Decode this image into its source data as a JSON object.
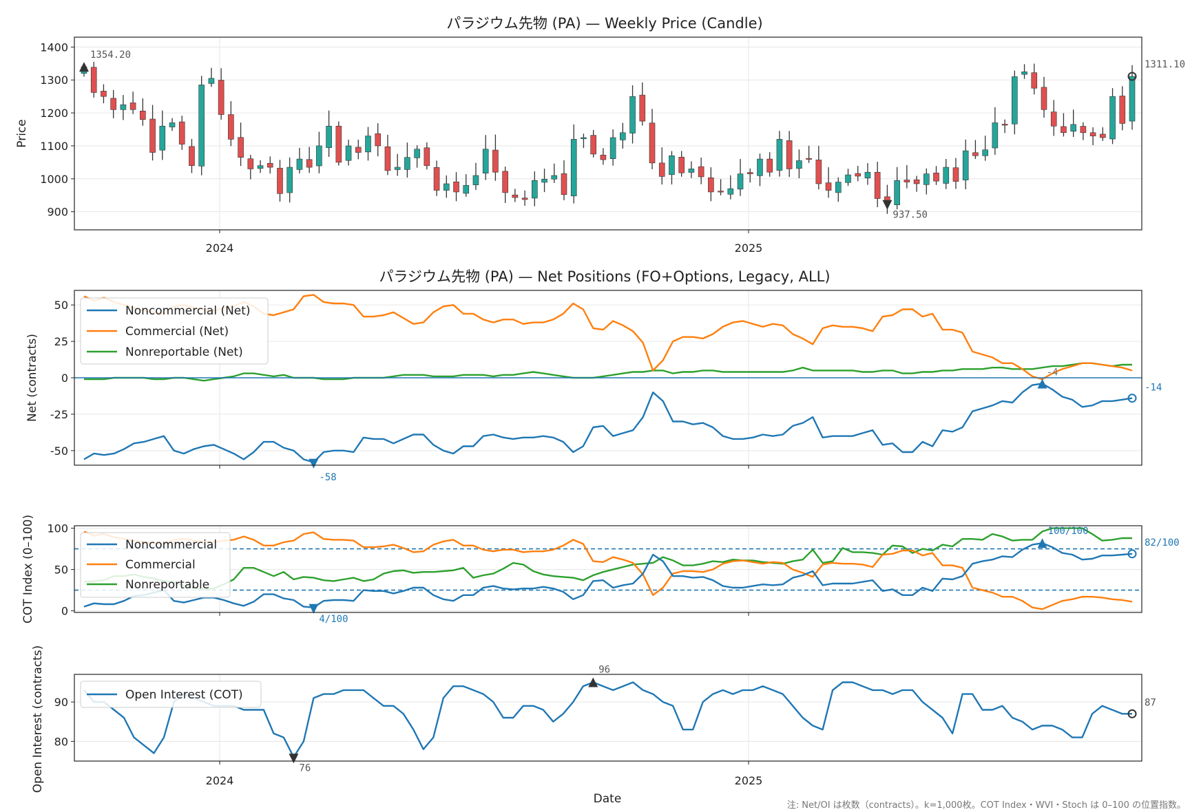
{
  "colors": {
    "up": "#26a69a",
    "down": "#e05050",
    "noncommercial": "#1f77b4",
    "commercial": "#ff7f0e",
    "nonreportable": "#2ca02c",
    "dark": "#333333",
    "grid": "#e6e6e6"
  },
  "footnote": "注: Net/OI は枚数（contracts）。k=1,000枚。COT Index・WVI・Stoch は 0–100 の位置指数。",
  "x_axis": {
    "label": "Date",
    "tick_labels": [
      "2024",
      "2025"
    ]
  },
  "chart_data": [
    {
      "type": "candlestick",
      "title": "パラジウム先物 (PA) — Weekly Price (Candle)",
      "ylabel": "Price",
      "ylim": [
        845,
        1430
      ],
      "yticks": [
        900,
        1000,
        1100,
        1200,
        1300,
        1400
      ],
      "grid": true,
      "annotations": {
        "max_label": "1354.20",
        "min_label": "937.50",
        "last_label": "1311.10"
      },
      "closes": [
        1340,
        1262,
        1250,
        1210,
        1225,
        1210,
        1180,
        1080,
        1160,
        1170,
        1105,
        1040,
        1285,
        1305,
        1195,
        1120,
        1065,
        1030,
        1040,
        1035,
        955,
        1035,
        1060,
        1035,
        1100,
        1160,
        1050,
        1100,
        1080,
        1130,
        1100,
        1025,
        1035,
        1065,
        1090,
        1040,
        965,
        985,
        960,
        980,
        1010,
        1090,
        1020,
        958,
        943,
        937,
        995,
        999,
        1010,
        952,
        1120,
        1125,
        1075,
        1058,
        1125,
        1140,
        1250,
        1175,
        1048,
        1007,
        1070,
        1018,
        1030,
        1006,
        960,
        960,
        970,
        1015,
        1015,
        1060,
        1020,
        1120,
        1030,
        1055,
        1060,
        985,
        965,
        990,
        1012,
        1008,
        1020,
        940,
        925,
        995,
        990,
        985,
        1015,
        993,
        1035,
        992,
        1085,
        1070,
        1088,
        1170,
        1165,
        1310,
        1325,
        1275,
        1210,
        1160,
        1140,
        1165,
        1140,
        1130,
        1125,
        1250,
        1168,
        1311
      ],
      "mark_types": [
        "up",
        "down"
      ]
    },
    {
      "type": "line",
      "title": "パラジウム先物 (PA) — Net Positions (FO+Options, Legacy, ALL)",
      "ylabel": "Net (contracts)",
      "ylim": [
        -60,
        60
      ],
      "yticks": [
        -50,
        -25,
        0,
        25,
        50
      ],
      "legend": "top-left",
      "grid": true,
      "annotations": {
        "min_label": "-58",
        "max_label": "-4",
        "last_label": "-14"
      },
      "series": [
        {
          "name": "Noncommercial (Net)",
          "color": "#1f77b4",
          "values": [
            -56,
            -52,
            -53,
            -52,
            -49,
            -45,
            -44,
            -42,
            -40,
            -50,
            -52,
            -49,
            -47,
            -46,
            -49,
            -52,
            -56,
            -51,
            -44,
            -44,
            -48,
            -50,
            -56,
            -58,
            -51,
            -50,
            -50,
            -51,
            -41,
            -42,
            -42,
            -45,
            -42,
            -39,
            -39,
            -46,
            -50,
            -52,
            -47,
            -47,
            -40,
            -39,
            -41,
            -42,
            -41,
            -41,
            -40,
            -41,
            -44,
            -51,
            -47,
            -34,
            -33,
            -40,
            -38,
            -36,
            -27,
            -10,
            -16,
            -30,
            -30,
            -32,
            -31,
            -34,
            -40,
            -42,
            -42,
            -41,
            -39,
            -40,
            -39,
            -33,
            -31,
            -27,
            -41,
            -40,
            -40,
            -40,
            -38,
            -36,
            -46,
            -45,
            -51,
            -51,
            -44,
            -47,
            -36,
            -37,
            -34,
            -23,
            -21,
            -19,
            -16,
            -17,
            -10,
            -5,
            -4,
            -8,
            -13,
            -15,
            -20,
            -19,
            -16,
            -16,
            -15,
            -14
          ]
        },
        {
          "name": "Commercial (Net)",
          "color": "#ff7f0e",
          "values": [
            56,
            53,
            55,
            52,
            50,
            48,
            46,
            45,
            44,
            49,
            50,
            48,
            47,
            46,
            48,
            49,
            52,
            49,
            44,
            43,
            45,
            47,
            56,
            57,
            52,
            51,
            51,
            50,
            42,
            42,
            43,
            45,
            41,
            37,
            38,
            45,
            49,
            50,
            44,
            44,
            40,
            38,
            40,
            40,
            37,
            38,
            38,
            40,
            44,
            51,
            47,
            34,
            33,
            39,
            36,
            32,
            24,
            5,
            12,
            25,
            28,
            28,
            27,
            30,
            35,
            38,
            39,
            37,
            35,
            37,
            36,
            30,
            27,
            23,
            34,
            36,
            35,
            35,
            34,
            32,
            42,
            43,
            47,
            47,
            42,
            44,
            33,
            33,
            31,
            18,
            16,
            14,
            10,
            10,
            6,
            1,
            -1,
            3,
            6,
            8,
            10,
            10,
            9,
            8,
            7,
            5
          ]
        },
        {
          "name": "Nonreportable (Net)",
          "color": "#2ca02c",
          "values": [
            -1,
            -1,
            -1,
            0,
            0,
            0,
            0,
            -1,
            -1,
            0,
            0,
            -1,
            -2,
            -1,
            0,
            1,
            3,
            3,
            2,
            1,
            2,
            0,
            0,
            0,
            -1,
            -1,
            -1,
            0,
            0,
            0,
            0,
            1,
            2,
            2,
            2,
            1,
            1,
            1,
            2,
            2,
            2,
            1,
            2,
            2,
            3,
            4,
            3,
            2,
            1,
            0,
            0,
            0,
            1,
            2,
            3,
            4,
            4,
            5,
            5,
            3,
            4,
            4,
            5,
            5,
            4,
            4,
            4,
            4,
            4,
            4,
            4,
            5,
            7,
            5,
            5,
            5,
            5,
            5,
            4,
            4,
            5,
            5,
            3,
            3,
            4,
            4,
            5,
            5,
            6,
            6,
            6,
            7,
            7,
            6,
            6,
            6,
            7,
            8,
            8,
            9,
            10,
            10,
            9,
            8,
            9,
            9
          ]
        }
      ]
    },
    {
      "type": "line",
      "title": "",
      "ylabel": "COT Index (0–100)",
      "ylim": [
        -2,
        103
      ],
      "yticks": [
        0,
        50,
        100
      ],
      "reference_lines": [
        25,
        75
      ],
      "legend": "top-left",
      "grid": true,
      "annotations": {
        "min_label": "4/100",
        "max_label": "100/100",
        "last_label": "82/100"
      },
      "series": [
        {
          "name": "Noncommercial",
          "color": "#1f77b4",
          "values": [
            5,
            9,
            8,
            8,
            12,
            18,
            19,
            22,
            25,
            12,
            10,
            13,
            16,
            16,
            13,
            9,
            6,
            11,
            20,
            20,
            15,
            13,
            5,
            4,
            12,
            13,
            13,
            12,
            25,
            24,
            24,
            21,
            24,
            28,
            28,
            19,
            14,
            12,
            19,
            19,
            28,
            30,
            27,
            26,
            27,
            27,
            29,
            27,
            23,
            14,
            19,
            36,
            37,
            28,
            31,
            33,
            45,
            68,
            60,
            42,
            42,
            40,
            41,
            37,
            30,
            28,
            28,
            30,
            32,
            31,
            32,
            40,
            43,
            48,
            31,
            33,
            33,
            33,
            35,
            37,
            24,
            26,
            19,
            19,
            28,
            24,
            39,
            38,
            42,
            57,
            60,
            62,
            66,
            65,
            74,
            80,
            82,
            77,
            70,
            68,
            62,
            63,
            67,
            67,
            68,
            69
          ]
        },
        {
          "name": "Commercial",
          "color": "#ff7f0e",
          "values": [
            96,
            91,
            93,
            89,
            87,
            85,
            83,
            82,
            81,
            86,
            87,
            85,
            84,
            83,
            85,
            86,
            90,
            86,
            79,
            79,
            83,
            85,
            93,
            95,
            87,
            86,
            86,
            85,
            77,
            77,
            78,
            80,
            76,
            71,
            72,
            80,
            84,
            86,
            79,
            79,
            74,
            72,
            74,
            74,
            71,
            72,
            72,
            74,
            79,
            86,
            81,
            60,
            59,
            65,
            62,
            58,
            44,
            19,
            28,
            45,
            48,
            48,
            47,
            50,
            57,
            60,
            61,
            59,
            57,
            59,
            58,
            50,
            46,
            41,
            56,
            58,
            57,
            57,
            56,
            53,
            68,
            69,
            73,
            73,
            67,
            70,
            55,
            55,
            52,
            28,
            25,
            22,
            17,
            17,
            12,
            4,
            2,
            7,
            12,
            14,
            17,
            17,
            16,
            14,
            13,
            11
          ]
        },
        {
          "name": "Nonreportable",
          "color": "#2ca02c",
          "values": [
            35,
            36,
            37,
            42,
            42,
            44,
            41,
            39,
            36,
            35,
            30,
            28,
            26,
            27,
            32,
            38,
            52,
            52,
            47,
            42,
            47,
            38,
            41,
            40,
            37,
            36,
            38,
            40,
            36,
            38,
            45,
            48,
            49,
            46,
            47,
            47,
            48,
            49,
            52,
            40,
            43,
            45,
            51,
            58,
            56,
            48,
            44,
            42,
            41,
            40,
            37,
            43,
            47,
            50,
            53,
            56,
            57,
            58,
            65,
            61,
            55,
            55,
            57,
            60,
            59,
            62,
            61,
            61,
            59,
            58,
            57,
            60,
            62,
            74,
            58,
            60,
            76,
            71,
            71,
            70,
            68,
            79,
            78,
            70,
            75,
            73,
            80,
            78,
            87,
            87,
            86,
            93,
            90,
            85,
            86,
            86,
            96,
            100,
            100,
            100,
            100,
            93,
            85,
            86,
            88,
            88
          ]
        }
      ]
    },
    {
      "type": "line",
      "title": "",
      "ylabel": "Open Interest (contracts)",
      "ylim": [
        75,
        97
      ],
      "yticks": [
        80,
        90
      ],
      "legend": "top-left",
      "grid": true,
      "annotations": {
        "min_label": "76",
        "max_label": "96",
        "last_label": "87"
      },
      "series": [
        {
          "name": "Open Interest (COT)",
          "color": "#1f77b4",
          "values": [
            93,
            90,
            90,
            88,
            86,
            81,
            79,
            77,
            81,
            90,
            92,
            91,
            90,
            89,
            89,
            89,
            88,
            88,
            88,
            82,
            81,
            76,
            80,
            91,
            92,
            92,
            93,
            93,
            93,
            91,
            89,
            89,
            87,
            83,
            78,
            81,
            91,
            94,
            94,
            93,
            92,
            90,
            86,
            86,
            89,
            89,
            88,
            85,
            87,
            90,
            94,
            95,
            94,
            93,
            94,
            95,
            93,
            92,
            90,
            89,
            83,
            83,
            90,
            92,
            93,
            92,
            93,
            93,
            94,
            93,
            92,
            89,
            86,
            84,
            83,
            93,
            95,
            95,
            94,
            93,
            93,
            92,
            93,
            93,
            90,
            88,
            86,
            82,
            92,
            92,
            88,
            88,
            89,
            86,
            85,
            83,
            84,
            84,
            83,
            81,
            81,
            87,
            89,
            88,
            87,
            87
          ]
        }
      ]
    }
  ]
}
